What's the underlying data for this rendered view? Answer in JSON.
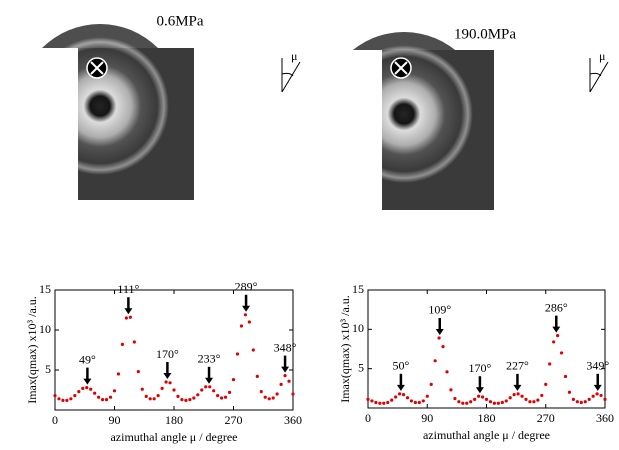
{
  "panels": [
    {
      "label": "0.6MPa",
      "symbol": "μ"
    },
    {
      "label": "190.0MPa",
      "symbol": "μ"
    }
  ],
  "chart_data": [
    {
      "type": "scatter",
      "color": "#e00000",
      "xlabel": "azimuthal angle μ  /  degree",
      "ylabel": "Imax(qmax) x10³ /a.u.",
      "xlim": [
        0,
        360
      ],
      "xticks": [
        0,
        90,
        180,
        270,
        360
      ],
      "ylim": [
        0,
        15
      ],
      "yticks": [
        5,
        10,
        15
      ],
      "x": [
        0,
        6,
        12,
        18,
        24,
        30,
        36,
        42,
        48,
        54,
        60,
        66,
        72,
        78,
        84,
        90,
        96,
        102,
        108,
        114,
        120,
        126,
        132,
        138,
        144,
        150,
        156,
        162,
        168,
        174,
        180,
        186,
        192,
        198,
        204,
        210,
        216,
        222,
        228,
        234,
        240,
        246,
        252,
        258,
        264,
        270,
        276,
        282,
        288,
        294,
        300,
        306,
        312,
        318,
        324,
        330,
        336,
        342,
        348,
        354,
        360
      ],
      "values": [
        1.8,
        1.4,
        1.2,
        1.2,
        1.4,
        1.8,
        2.3,
        2.7,
        2.8,
        2.6,
        2.1,
        1.6,
        1.3,
        1.3,
        1.6,
        2.4,
        4.5,
        8.2,
        11.5,
        11.6,
        8.5,
        4.8,
        2.6,
        1.7,
        1.4,
        1.4,
        1.8,
        2.7,
        3.5,
        3.4,
        2.5,
        1.7,
        1.3,
        1.2,
        1.3,
        1.5,
        1.9,
        2.5,
        2.9,
        2.9,
        2.4,
        1.8,
        1.5,
        1.6,
        2.2,
        3.8,
        7.0,
        10.5,
        11.9,
        11.0,
        7.5,
        4.2,
        2.3,
        1.6,
        1.4,
        1.5,
        2.0,
        3.2,
        4.3,
        3.6,
        2.0
      ],
      "annotations": [
        {
          "value": 49,
          "label": "49°"
        },
        {
          "value": 111,
          "label": "111°"
        },
        {
          "value": 170,
          "label": "170°"
        },
        {
          "value": 233,
          "label": "233°"
        },
        {
          "value": 289,
          "label": "289°"
        },
        {
          "value": 348,
          "label": "348°"
        }
      ]
    },
    {
      "type": "scatter",
      "color": "#e00000",
      "xlabel": "azimuthal angle μ  /  degree",
      "ylabel": "Imax(qmax) x10³ /a.u.",
      "xlim": [
        0,
        360
      ],
      "xticks": [
        0,
        90,
        180,
        270,
        360
      ],
      "ylim": [
        0,
        15
      ],
      "yticks": [
        5,
        10,
        15
      ],
      "x": [
        0,
        6,
        12,
        18,
        24,
        30,
        36,
        42,
        48,
        54,
        60,
        66,
        72,
        78,
        84,
        90,
        96,
        102,
        108,
        114,
        120,
        126,
        132,
        138,
        144,
        150,
        156,
        162,
        168,
        174,
        180,
        186,
        192,
        198,
        204,
        210,
        216,
        222,
        228,
        234,
        240,
        246,
        252,
        258,
        264,
        270,
        276,
        282,
        288,
        294,
        300,
        306,
        312,
        318,
        324,
        330,
        336,
        342,
        348,
        354,
        360
      ],
      "values": [
        1.1,
        0.9,
        0.7,
        0.6,
        0.6,
        0.7,
        1.0,
        1.4,
        1.8,
        1.7,
        1.3,
        0.9,
        0.7,
        0.7,
        0.9,
        1.5,
        3.0,
        6.0,
        8.9,
        7.8,
        4.6,
        2.3,
        1.2,
        0.8,
        0.6,
        0.6,
        0.8,
        1.1,
        1.5,
        1.4,
        1.1,
        0.8,
        0.6,
        0.6,
        0.7,
        0.9,
        1.3,
        1.7,
        1.8,
        1.5,
        1.1,
        0.8,
        0.8,
        1.0,
        1.6,
        3.0,
        5.6,
        8.4,
        9.2,
        7.0,
        4.0,
        2.0,
        1.1,
        0.8,
        0.7,
        0.8,
        1.1,
        1.5,
        1.8,
        1.6,
        1.1
      ],
      "annotations": [
        {
          "value": 50,
          "label": "50°"
        },
        {
          "value": 109,
          "label": "109°"
        },
        {
          "value": 170,
          "label": "170°"
        },
        {
          "value": 227,
          "label": "227°"
        },
        {
          "value": 286,
          "label": "286°"
        },
        {
          "value": 349,
          "label": "349°"
        }
      ]
    }
  ]
}
